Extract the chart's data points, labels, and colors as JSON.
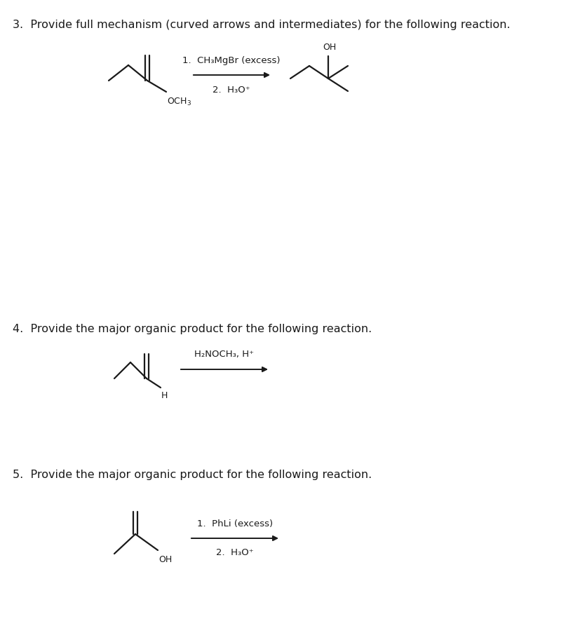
{
  "bg": "#ffffff",
  "tc": "#1a1a1a",
  "q3_title": "3.  Provide full mechanism (curved arrows and intermediates) for the following reaction.",
  "q4_title": "4.  Provide the major organic product for the following reaction.",
  "q5_title": "5.  Provide the major organic product for the following reaction.",
  "q3_r1": "1.  CH₃MgBr (excess)",
  "q3_r2": "2.  H₃O⁺",
  "q4_r": "H₂NOCH₃, H⁺",
  "q5_r1": "1.  PhLi (excess)",
  "q5_r2": "2.  H₃O⁺",
  "title_fs": 11.5,
  "reagent_fs": 9.5,
  "mol_fs": 9.0,
  "lw": 1.6
}
